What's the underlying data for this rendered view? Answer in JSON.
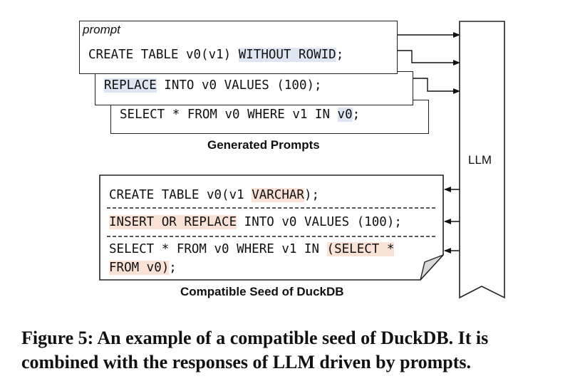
{
  "prompts": {
    "label": "prompt",
    "p1": {
      "a": "CREATE TABLE v0(v1) ",
      "b": "WITHOUT ROWID",
      "c": ";"
    },
    "p2": {
      "a": "REPLACE",
      "b": " INTO v0 VALUES (100);"
    },
    "p3": {
      "a": "SELECT * FROM v0 WHERE v1 IN ",
      "b": "v0",
      "c": ";"
    },
    "title": "Generated Prompts"
  },
  "llm": {
    "label": "LLM"
  },
  "seed": {
    "s1": {
      "a": "CREATE TABLE v0(v1 ",
      "b": "VARCHAR",
      "c": ");"
    },
    "s2": {
      "a": "INSERT OR REPLACE",
      "b": " INTO v0 VALUES (100);"
    },
    "s3": {
      "a": "SELECT * FROM v0 WHERE v1 IN ",
      "b": "(SELECT *",
      "c": "FROM v0)",
      "d": ";"
    },
    "title": "Compatible Seed of DuckDB"
  },
  "caption": {
    "line1": "Figure 5: An example of a compatible seed of DuckDB. It is",
    "line2": "combined with the responses of LLM driven by prompts."
  },
  "colors": {
    "highlight_prompt": "#dde6f2",
    "highlight_seed": "#fbe2d7"
  }
}
